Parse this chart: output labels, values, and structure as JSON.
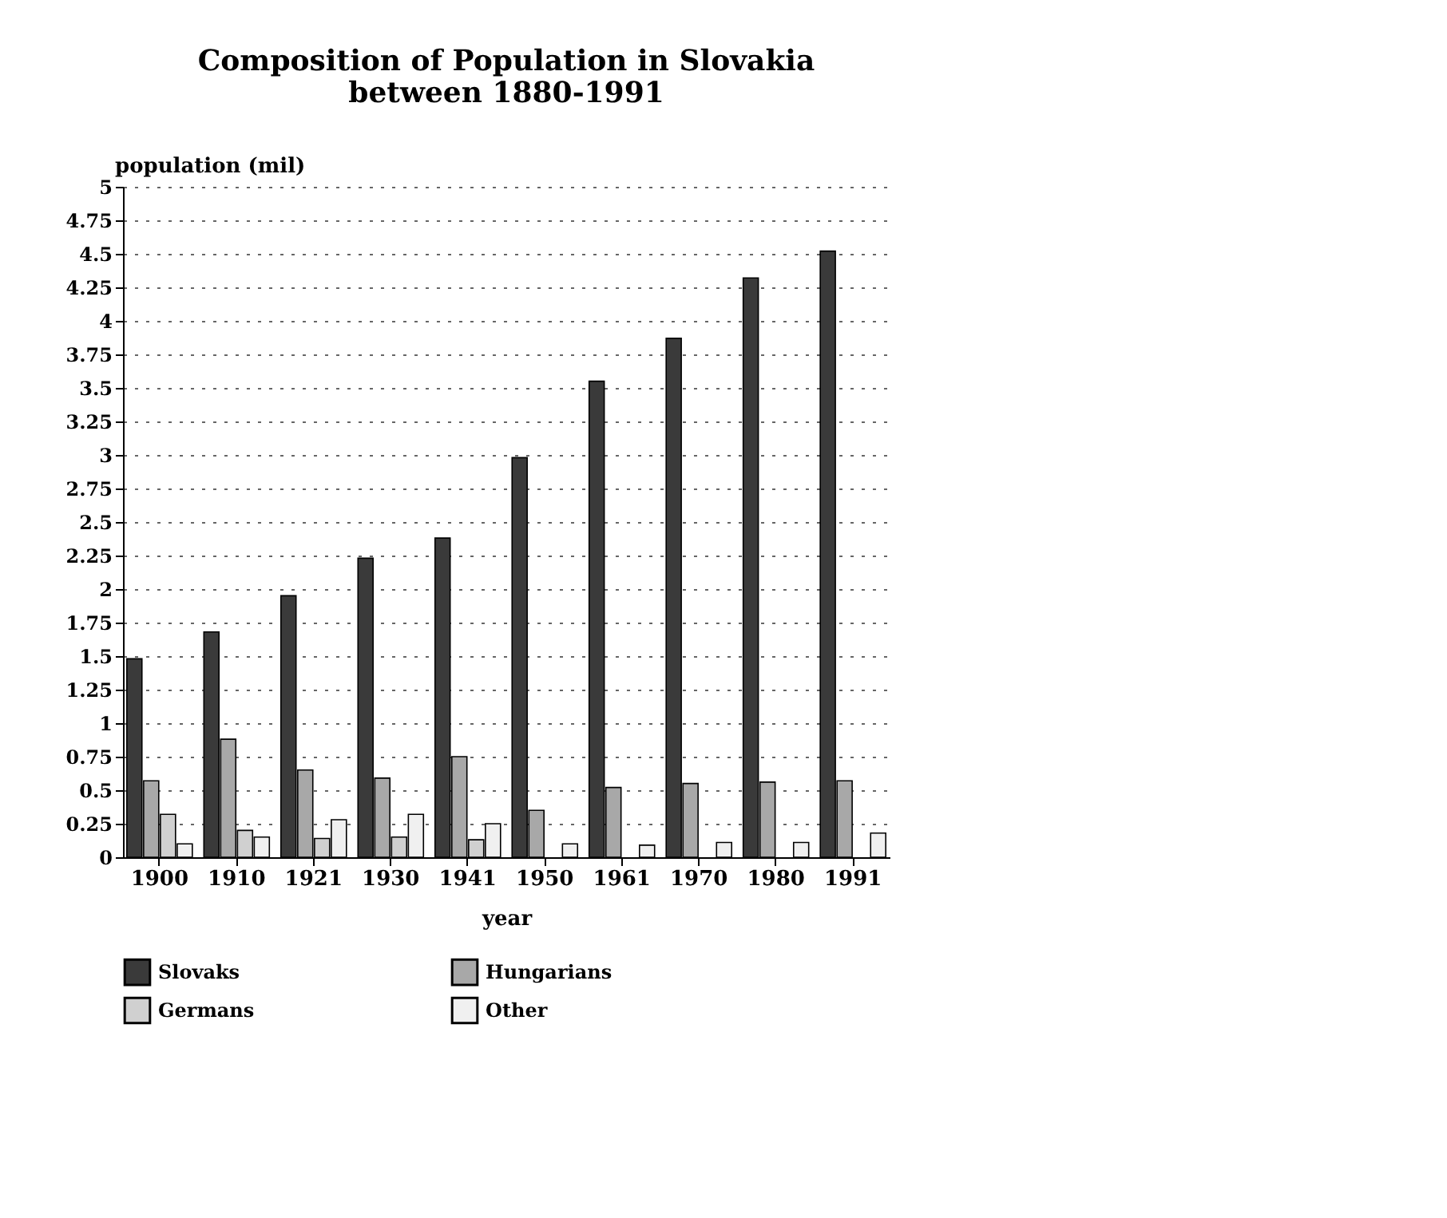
{
  "chart_data": {
    "type": "bar",
    "title": [
      "Composition of Population in Slovakia",
      "between 1880-1991"
    ],
    "xlabel": "year",
    "ylabel": "population (mil)",
    "categories": [
      "1900",
      "1910",
      "1921",
      "1930",
      "1941",
      "1950",
      "1961",
      "1970",
      "1980",
      "1991"
    ],
    "series": [
      {
        "name": "Slovaks",
        "color": "#3a3a3a",
        "values": [
          1.48,
          1.68,
          1.95,
          2.23,
          2.38,
          2.98,
          3.55,
          3.87,
          4.32,
          4.52
        ]
      },
      {
        "name": "Hungarians",
        "color": "#a8a8a8",
        "values": [
          0.57,
          0.88,
          0.65,
          0.59,
          0.75,
          0.35,
          0.52,
          0.55,
          0.56,
          0.57
        ]
      },
      {
        "name": "Germans",
        "color": "#d0d0d0",
        "values": [
          0.32,
          0.2,
          0.14,
          0.15,
          0.13,
          null,
          null,
          null,
          null,
          null
        ]
      },
      {
        "name": "Other",
        "color": "#f0f0f0",
        "values": [
          0.1,
          0.15,
          0.28,
          0.32,
          0.25,
          0.1,
          0.09,
          0.11,
          0.11,
          0.18
        ]
      }
    ],
    "ylim": [
      0,
      5
    ],
    "yticks": [
      0,
      0.25,
      0.5,
      0.75,
      1,
      1.25,
      1.5,
      1.75,
      2,
      2.25,
      2.5,
      2.75,
      3,
      3.25,
      3.5,
      3.75,
      4,
      4.25,
      4.5,
      4.75,
      5
    ],
    "grid": "y",
    "legend": "bottom"
  }
}
